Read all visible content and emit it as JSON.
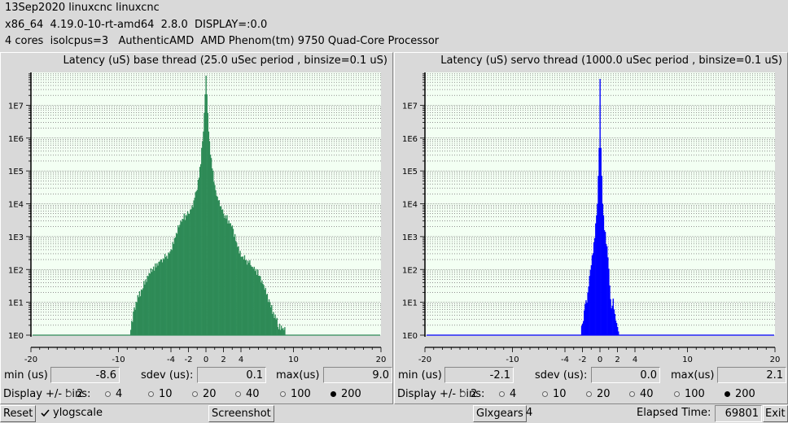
{
  "header": {
    "line1": "13Sep2020 linuxcnc linuxcnc",
    "line2": "x86_64  4.19.0-10-rt-amd64  2.8.0  DISPLAY=:0.0",
    "line3": "4 cores  isolcpus=3   AuthenticAMD  AMD Phenom(tm) 9750 Quad-Core Processor"
  },
  "base": {
    "title": "Latency (uS) base thread (25.0 uSec period , binsize=0.1 uS)",
    "min_label": "min (us)",
    "min": "-8.6",
    "sdev_label": "sdev (us):",
    "sdev": "0.1",
    "max_label": "max(us)",
    "max": "9.0"
  },
  "servo": {
    "title": "Latency (uS) servo thread (1000.0 uSec period , binsize=0.1 uS)",
    "min_label": "min (us)",
    "min": "-2.1",
    "sdev_label": "sdev (us):",
    "sdev": "0.0",
    "max_label": "max(us)",
    "max": "2.1"
  },
  "bins": {
    "label": "Display +/- bins:",
    "options": [
      "2",
      "4",
      "10",
      "20",
      "40",
      "100",
      "200"
    ],
    "selected": "200"
  },
  "footer": {
    "reset": "Reset",
    "ylogscale": "ylogscale",
    "ylogscale_checked": true,
    "screenshot": "Screenshot",
    "glxgears": "Glxgears",
    "glx_count": "4",
    "elapsed_label": "Elapsed Time:",
    "elapsed": "69801",
    "exit": "Exit"
  },
  "chart_data": [
    {
      "type": "bar",
      "title": "Latency (uS) base thread (25.0 uSec period , binsize=0.1 uS)",
      "yscale": "log",
      "y_tick_labels": [
        "1E0",
        "1E1",
        "1E2",
        "1E3",
        "1E4",
        "1E5",
        "1E6",
        "1E7"
      ],
      "x_tick_labels": [
        "-20",
        "-10",
        "-4",
        "-2",
        "0",
        "2",
        "4",
        "10",
        "20"
      ],
      "x_ticks": [
        -20,
        -10,
        -4,
        -2,
        0,
        2,
        4,
        10,
        20
      ],
      "xlim": [
        -20,
        20
      ],
      "ylim_log10": [
        0,
        8
      ],
      "color": "#2e8b57",
      "envelope_x": [
        -8.6,
        -8.3,
        -8,
        -7.5,
        -7,
        -6.5,
        -6,
        -5.5,
        -5,
        -4.5,
        -4,
        -3.5,
        -3,
        -2.5,
        -2,
        -1.5,
        -1,
        -0.6,
        -0.3,
        0,
        0.3,
        0.6,
        1,
        1.5,
        2,
        2.5,
        3,
        3.5,
        4,
        4.5,
        5,
        5.5,
        6,
        6.5,
        7,
        7.5,
        8,
        8.3,
        8.6,
        9
      ],
      "envelope_log10": [
        0.2,
        0.6,
        1.0,
        1.3,
        1.6,
        1.85,
        2.05,
        2.2,
        2.3,
        2.4,
        2.6,
        3.0,
        3.4,
        3.6,
        3.7,
        4.0,
        4.5,
        5.3,
        6.2,
        7.9,
        6.2,
        5.3,
        4.5,
        4.0,
        3.7,
        3.5,
        3.3,
        2.8,
        2.4,
        2.3,
        2.2,
        2.0,
        1.85,
        1.6,
        1.2,
        0.8,
        0.5,
        0.3,
        0.25,
        0.15
      ]
    },
    {
      "type": "bar",
      "title": "Latency (uS) servo thread (1000.0 uSec period , binsize=0.1 uS)",
      "yscale": "log",
      "y_tick_labels": [
        "1E0",
        "1E1",
        "1E2",
        "1E3",
        "1E4",
        "1E5",
        "1E6",
        "1E7"
      ],
      "x_tick_labels": [
        "-20",
        "-10",
        "-4",
        "-2",
        "0",
        "2",
        "4",
        "10",
        "20"
      ],
      "x_ticks": [
        -20,
        -10,
        -4,
        -2,
        0,
        2,
        4,
        10,
        20
      ],
      "xlim": [
        -20,
        20
      ],
      "ylim_log10": [
        0,
        8
      ],
      "color": "#0000ff",
      "envelope_x": [
        -2.1,
        -1.9,
        -1.7,
        -1.5,
        -1.3,
        -1.1,
        -0.9,
        -0.7,
        -0.5,
        -0.3,
        -0.1,
        0,
        0.1,
        0.3,
        0.5,
        0.7,
        0.9,
        1.1,
        1.3,
        1.5,
        1.7,
        1.9,
        2.1
      ],
      "envelope_log10": [
        0.2,
        0.5,
        1.0,
        1.1,
        1.5,
        2.0,
        2.4,
        2.8,
        3.3,
        4.0,
        5.7,
        7.8,
        5.7,
        4.0,
        3.3,
        2.8,
        2.4,
        1.5,
        0.8,
        1.0,
        0.6,
        0.3,
        0.2
      ]
    }
  ]
}
